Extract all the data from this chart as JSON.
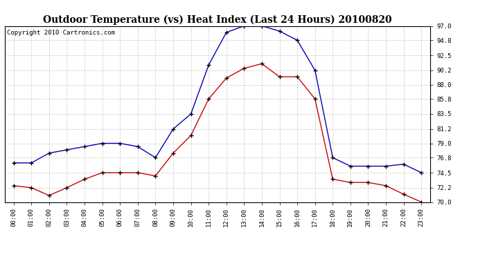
{
  "title": "Outdoor Temperature (vs) Heat Index (Last 24 Hours) 20100820",
  "copyright_text": "Copyright 2010 Cartronics.com",
  "hours": [
    "00:00",
    "01:00",
    "02:00",
    "03:00",
    "04:00",
    "05:00",
    "06:00",
    "07:00",
    "08:00",
    "09:00",
    "10:00",
    "11:00",
    "12:00",
    "13:00",
    "14:00",
    "15:00",
    "16:00",
    "17:00",
    "18:00",
    "19:00",
    "20:00",
    "21:00",
    "22:00",
    "23:00"
  ],
  "blue_temp": [
    76.0,
    76.0,
    77.5,
    78.0,
    78.5,
    79.0,
    79.0,
    78.5,
    76.8,
    81.2,
    83.5,
    91.0,
    96.0,
    97.0,
    97.0,
    96.2,
    94.8,
    90.2,
    76.8,
    75.5,
    75.5,
    75.5,
    75.8,
    74.5
  ],
  "red_heat": [
    72.5,
    72.2,
    71.0,
    72.2,
    73.5,
    74.5,
    74.5,
    74.5,
    74.0,
    77.5,
    80.2,
    85.8,
    89.0,
    90.5,
    91.2,
    89.2,
    89.2,
    85.8,
    73.5,
    73.0,
    73.0,
    72.5,
    71.2,
    70.0
  ],
  "blue_color": "#0000bb",
  "red_color": "#cc0000",
  "bg_color": "#ffffff",
  "grid_color": "#bbbbbb",
  "ylim_min": 70.0,
  "ylim_max": 97.0,
  "yticks": [
    70.0,
    72.2,
    74.5,
    76.8,
    79.0,
    81.2,
    83.5,
    85.8,
    88.0,
    90.2,
    92.5,
    94.8,
    97.0
  ],
  "title_fontsize": 10,
  "copyright_fontsize": 6.5,
  "tick_fontsize": 6.5
}
